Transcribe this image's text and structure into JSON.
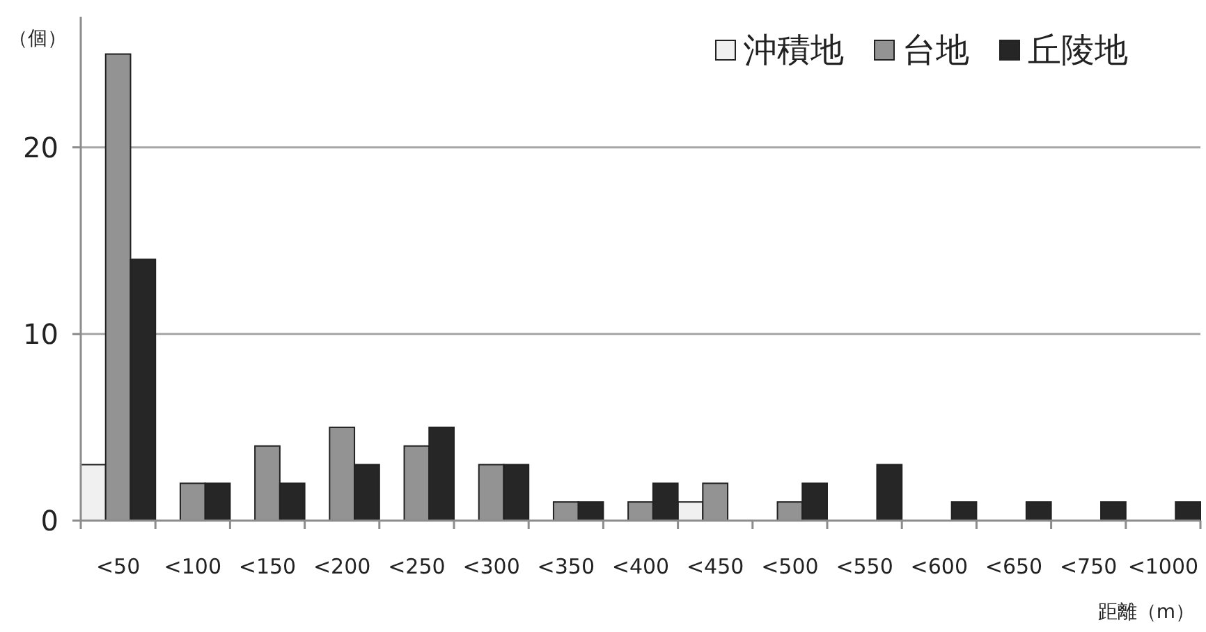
{
  "chart_data": {
    "type": "bar",
    "ylabel": "（個）",
    "xlabel": "距離（m）",
    "categories": [
      "<50",
      "<100",
      "<150",
      "<200",
      "<250",
      "<300",
      "<350",
      "<400",
      "<450",
      "<500",
      "<550",
      "<600",
      "<650",
      "<750",
      "<1000"
    ],
    "series": [
      {
        "name": "沖積地",
        "color": "#f0f0f0",
        "values": [
          3,
          0,
          0,
          0,
          0,
          0,
          0,
          0,
          1,
          0,
          0,
          0,
          0,
          0,
          0
        ]
      },
      {
        "name": "台地",
        "color": "#939393",
        "values": [
          25,
          2,
          4,
          5,
          4,
          3,
          1,
          1,
          2,
          1,
          0,
          0,
          0,
          0,
          0
        ]
      },
      {
        "name": "丘陵地",
        "color": "#262626",
        "values": [
          14,
          2,
          2,
          3,
          5,
          3,
          1,
          2,
          0,
          2,
          3,
          1,
          1,
          1,
          1
        ]
      }
    ],
    "ylim": [
      0,
      27
    ],
    "yticks": [
      0,
      10,
      20
    ],
    "grid": "y",
    "legend": "top right"
  }
}
